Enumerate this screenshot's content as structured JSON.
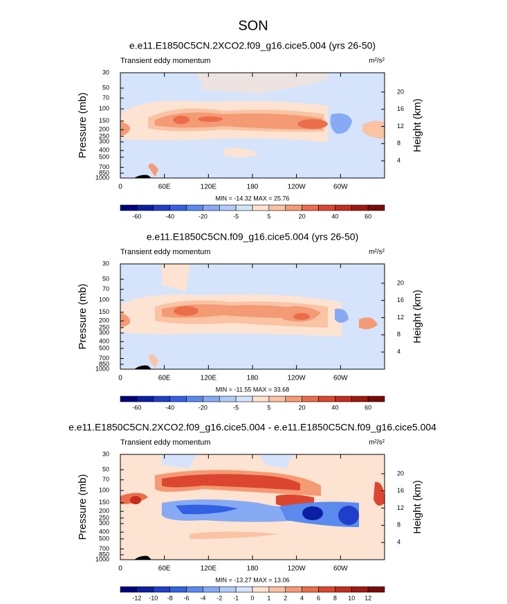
{
  "title": "SON",
  "chart_data": [
    {
      "type": "contour",
      "title": "e.e11.E1850C5CN.2XCO2.f09_g16.cice5.004 (yrs 26-50)",
      "subtitle": "Transient eddy momentum",
      "units": "m²/s²",
      "y_label": "Pressure (mb)",
      "y2_label": "Height (km)",
      "stats": "MIN = -14.32  MAX = 25.76",
      "xlim": [
        0,
        360
      ],
      "xticks": [
        0,
        {
          "value": 60,
          "label": "60E"
        },
        {
          "value": 120,
          "label": "120E"
        },
        180,
        {
          "value": 240,
          "label": "120W"
        },
        {
          "value": 300,
          "label": "60W"
        }
      ],
      "yscale": "log",
      "ylim": [
        1000,
        30
      ],
      "yticks": [
        30,
        50,
        70,
        100,
        150,
        200,
        250,
        300,
        400,
        500,
        700,
        850,
        1000
      ],
      "y2lim": [
        0,
        24.5
      ],
      "y2ticks": [
        4,
        8,
        12,
        16,
        20
      ],
      "colorbar": {
        "colors": [
          "#03037e",
          "#0b1fa3",
          "#1f3fcb",
          "#3262e3",
          "#5a8aee",
          "#86aaf4",
          "#b1cbf8",
          "#d5e4fb",
          "#fde3d1",
          "#f9c3a4",
          "#f49a74",
          "#ec6d4a",
          "#dc4630",
          "#c42c1e",
          "#a01a11",
          "#780b07"
        ],
        "ticks": [
          -60,
          -40,
          -20,
          -5,
          5,
          20,
          40,
          60
        ]
      }
    },
    {
      "type": "contour",
      "title": "e.e11.E1850C5CN.f09_g16.cice5.004 (yrs 26-50)",
      "subtitle": "Transient eddy momentum",
      "units": "m²/s²",
      "y_label": "Pressure (mb)",
      "y2_label": "Height (km)",
      "stats": "MIN = -11.55  MAX = 33.68",
      "xlim": [
        0,
        360
      ],
      "xticks": [
        0,
        {
          "value": 60,
          "label": "60E"
        },
        {
          "value": 120,
          "label": "120E"
        },
        180,
        {
          "value": 240,
          "label": "120W"
        },
        {
          "value": 300,
          "label": "60W"
        }
      ],
      "yscale": "log",
      "ylim": [
        1000,
        30
      ],
      "yticks": [
        30,
        50,
        70,
        100,
        150,
        200,
        250,
        300,
        400,
        500,
        700,
        850,
        1000
      ],
      "y2lim": [
        0,
        24.5
      ],
      "y2ticks": [
        4,
        8,
        12,
        16,
        20
      ],
      "colorbar": {
        "colors": [
          "#03037e",
          "#0b1fa3",
          "#1f3fcb",
          "#3262e3",
          "#5a8aee",
          "#86aaf4",
          "#b1cbf8",
          "#d5e4fb",
          "#fde3d1",
          "#f9c3a4",
          "#f49a74",
          "#ec6d4a",
          "#dc4630",
          "#c42c1e",
          "#a01a11",
          "#780b07"
        ],
        "ticks": [
          -60,
          -40,
          -20,
          -5,
          5,
          20,
          40,
          60
        ]
      }
    },
    {
      "type": "contour",
      "title": "e.e11.E1850C5CN.2XCO2.f09_g16.cice5.004 - e.e11.E1850C5CN.f09_g16.cice5.004",
      "subtitle": "Transient eddy momentum",
      "units": "m²/s²",
      "y_label": "Pressure (mb)",
      "y2_label": "Height (km)",
      "stats": "MIN = -13.27  MAX = 13.06",
      "xlim": [
        0,
        360
      ],
      "xticks": [
        0,
        {
          "value": 60,
          "label": "60E"
        },
        {
          "value": 120,
          "label": "120E"
        },
        180,
        {
          "value": 240,
          "label": "120W"
        },
        {
          "value": 300,
          "label": "60W"
        }
      ],
      "yscale": "log",
      "ylim": [
        1000,
        30
      ],
      "yticks": [
        30,
        50,
        70,
        100,
        150,
        200,
        250,
        300,
        400,
        500,
        700,
        850,
        1000
      ],
      "y2lim": [
        0,
        24.5
      ],
      "y2ticks": [
        4,
        8,
        12,
        16,
        20
      ],
      "colorbar": {
        "colors": [
          "#03037e",
          "#0b1fa3",
          "#1f3fcb",
          "#3262e3",
          "#5a8aee",
          "#86aaf4",
          "#b1cbf8",
          "#d5e4fb",
          "#fde3d1",
          "#f9c3a4",
          "#f49a74",
          "#ec6d4a",
          "#dc4630",
          "#c42c1e",
          "#a01a11",
          "#780b07"
        ],
        "ticks": [
          -12,
          -10,
          -8,
          -6,
          -4,
          -2,
          -1,
          0,
          1,
          2,
          4,
          6,
          8,
          10,
          12
        ]
      }
    }
  ]
}
